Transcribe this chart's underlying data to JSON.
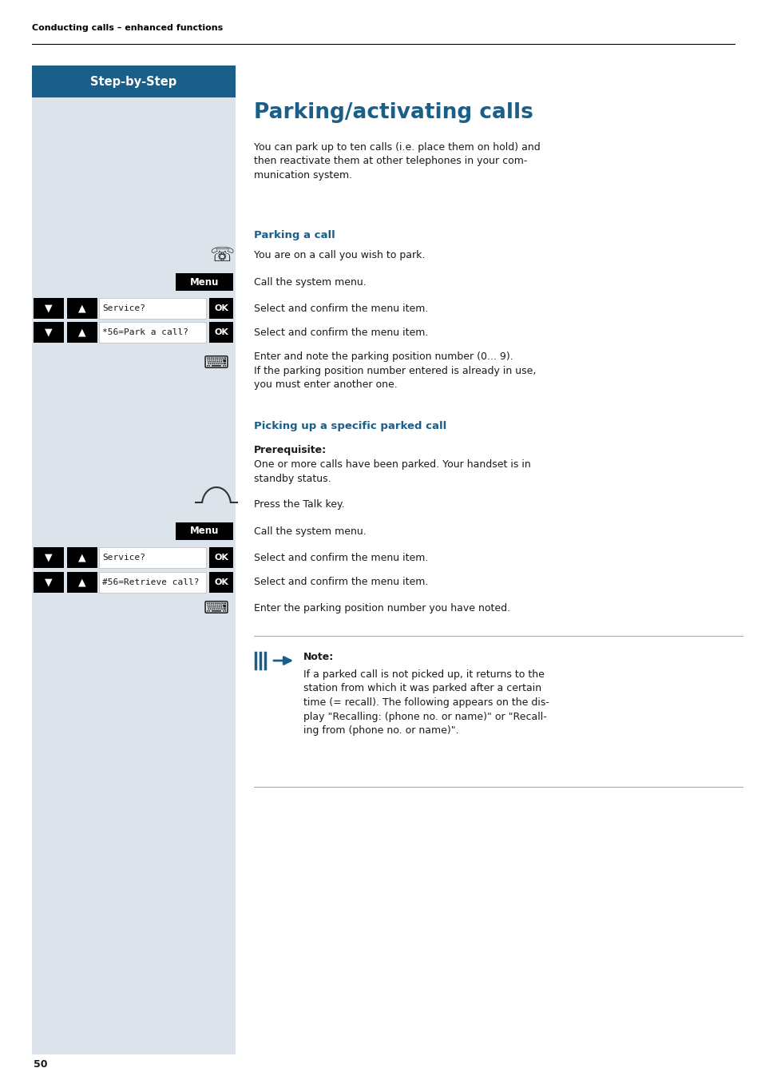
{
  "page_bg": "#ffffff",
  "left_panel_bg": "#dde3ea",
  "header_bar_color": "#1a5f8a",
  "header_text": "Step-by-Step",
  "header_text_color": "#ffffff",
  "top_label": "Conducting calls – enhanced functions",
  "title": "Parking/activating calls",
  "title_color": "#1a5f8a",
  "intro_text": "You can park up to ten calls (i.e. place them on hold) and\nthen reactivate them at other telephones in your com-\nmunication system.",
  "section1_heading": "Parking a call",
  "section1_heading_color": "#1a5f8a",
  "section2_heading": "Picking up a specific parked call",
  "section2_heading_color": "#1a5f8a",
  "prereq_heading": "Prerequisite:",
  "prereq_text": "One or more calls have been parked. Your handset is in\nstandby status.",
  "note_heading": "Note:",
  "note_text": "If a parked call is not picked up, it returns to the\nstation from which it was parked after a certain\ntime (= recall). The following appears on the dis-\nplay \"Recalling: (phone no. or name)\" or \"Recall-\ning from (phone no. or name)\".",
  "menu_btn_bg": "#000000",
  "menu_btn_text": "Menu",
  "menu_btn_text_color": "#ffffff",
  "ok_btn_bg": "#000000",
  "ok_btn_text": "OK",
  "ok_btn_text_color": "#ffffff",
  "page_number": "50",
  "note_arrow_color": "#1a5f8a"
}
